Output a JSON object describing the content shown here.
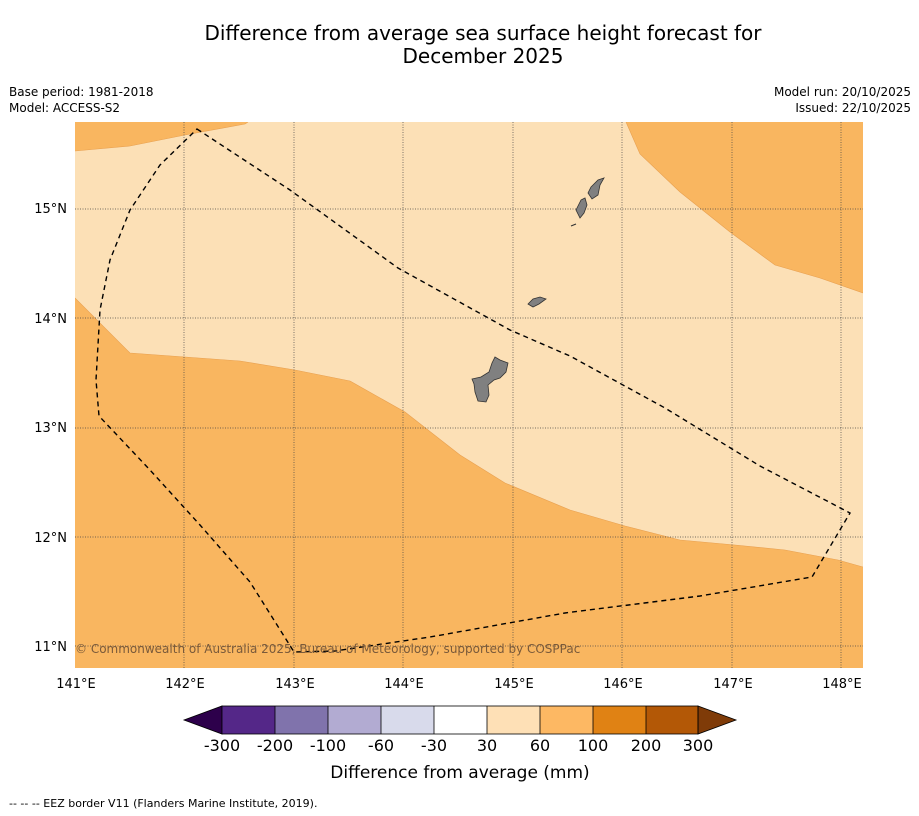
{
  "header": {
    "title_line1": "Difference from average sea surface height forecast for",
    "title_line2": "December 2025",
    "base_period": "Base period: 1981-2018",
    "model": "Model: ACCESS-S2",
    "model_run": "Model run: 20/10/2025",
    "issued": "Issued: 22/10/2025"
  },
  "map": {
    "lon_labels": [
      "141°E",
      "142°E",
      "143°E",
      "144°E",
      "145°E",
      "146°E",
      "147°E",
      "148°E"
    ],
    "lat_labels": [
      "15°N",
      "14°N",
      "13°N",
      "12°N",
      "11°N"
    ],
    "copyright": "© Commonwealth of Australia 2025, Bureau of Meteorology, supported by COSPPac",
    "colors": {
      "class_30_60": "#fce0b6",
      "class_60_100": "#f9b660",
      "land": "#808080"
    }
  },
  "colorbar": {
    "colors": [
      "#2d004b",
      "#542788",
      "#8073ac",
      "#b2abd2",
      "#d8daeb",
      "#ffffff",
      "#fee0b6",
      "#fdb863",
      "#e08214",
      "#b35806",
      "#7f3b08"
    ],
    "tick_labels": [
      "-300",
      "-200",
      "-100",
      "-60",
      "-30",
      "30",
      "60",
      "100",
      "200",
      "300"
    ],
    "title": "Difference from average (mm)"
  },
  "footer": {
    "legend_text": "--  --  -- EEZ border V11 (Flanders Marine Institute, 2019)."
  }
}
